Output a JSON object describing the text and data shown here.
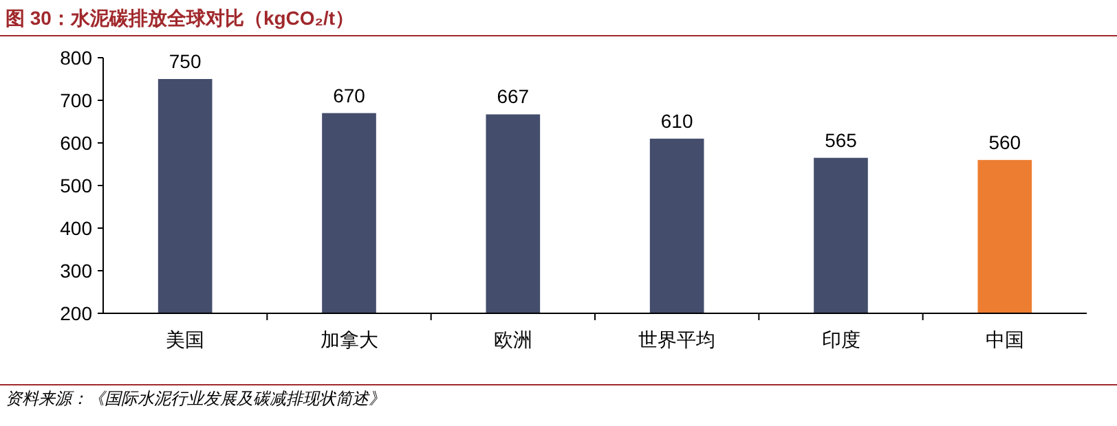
{
  "chart_data": {
    "type": "bar",
    "title": "图 30：水泥碳排放全球对比（kgCO₂/t）",
    "categories": [
      "美国",
      "加拿大",
      "欧洲",
      "世界平均",
      "印度",
      "中国"
    ],
    "values": [
      750,
      670,
      667,
      610,
      565,
      560
    ],
    "colors": [
      "#444d6c",
      "#444d6c",
      "#444d6c",
      "#444d6c",
      "#444d6c",
      "#ed7d31"
    ],
    "ylim": [
      200,
      800
    ],
    "yticks": [
      200,
      300,
      400,
      500,
      600,
      700,
      800
    ],
    "data_labels": true,
    "annotations": [
      "资料来源：《国际水泥行业发展及碳减排现状简述》"
    ]
  }
}
